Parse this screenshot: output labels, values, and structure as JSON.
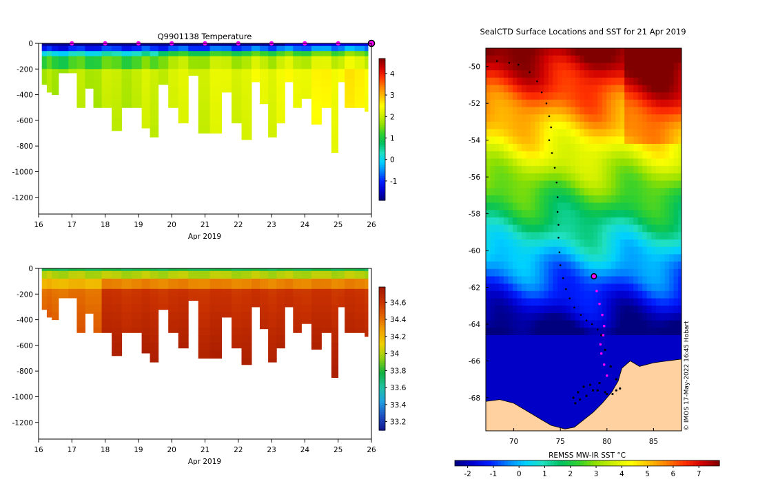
{
  "colors": {
    "jet": [
      "#00007f",
      "#0000d0",
      "#0020ff",
      "#0080ff",
      "#00d0ff",
      "#20e0c0",
      "#00c060",
      "#30d030",
      "#90e000",
      "#d0f000",
      "#ffff00",
      "#ffc000",
      "#ff8000",
      "#ff3000",
      "#d00000",
      "#800000"
    ],
    "salt": [
      "#101890",
      "#2050c0",
      "#20a0e0",
      "#20c0a0",
      "#10b040",
      "#90d010",
      "#f0d000",
      "#f0a000",
      "#e06000",
      "#c83000",
      "#a01800"
    ],
    "land": "#ffd0a0",
    "marker": "#ff00ff"
  },
  "chart_data": [
    {
      "id": "temperature",
      "type": "heatmap",
      "title": "Q9901138  Temperature",
      "xlabel": "Apr 2019",
      "x_ticks": [
        "16",
        "17",
        "18",
        "19",
        "20",
        "21",
        "22",
        "23",
        "24",
        "25",
        "26"
      ],
      "xlim": [
        16,
        26
      ],
      "y_ticks": [
        "0",
        "-200",
        "-400",
        "-600",
        "-800",
        "-1000",
        "-1200"
      ],
      "ylim": [
        -1330,
        0
      ],
      "colorbar_ticks": [
        "4",
        "3",
        "2",
        "1",
        "0",
        "-1"
      ],
      "colorbar_range": [
        -1.9,
        4.7
      ],
      "profile_days": [
        16.2,
        16.35,
        16.5,
        16.7,
        17.0,
        17.25,
        17.5,
        17.75,
        18.0,
        18.3,
        18.6,
        18.9,
        19.2,
        19.45,
        19.7,
        20.0,
        20.3,
        20.6,
        20.9,
        21.25,
        21.6,
        21.9,
        22.2,
        22.5,
        22.75,
        23.0,
        23.25,
        23.5,
        23.75,
        24.0,
        24.3,
        24.6,
        24.9,
        25.1,
        25.3,
        25.6,
        25.9
      ],
      "profile_max_depths": [
        320,
        380,
        400,
        230,
        230,
        500,
        350,
        500,
        500,
        680,
        500,
        500,
        660,
        730,
        320,
        500,
        620,
        250,
        700,
        700,
        380,
        620,
        750,
        300,
        470,
        730,
        620,
        300,
        500,
        430,
        630,
        500,
        850,
        300,
        500,
        500,
        530
      ],
      "surface_marker_days": [
        17,
        18,
        19,
        20,
        21,
        22,
        23,
        24,
        25
      ],
      "current_position_day": 26
    },
    {
      "id": "salinity",
      "type": "heatmap",
      "title": "",
      "xlabel": "Apr 2019",
      "x_ticks": [
        "16",
        "17",
        "18",
        "19",
        "20",
        "21",
        "22",
        "23",
        "24",
        "25",
        "26"
      ],
      "xlim": [
        16,
        26
      ],
      "y_ticks": [
        "0",
        "-200",
        "-400",
        "-600",
        "-800",
        "-1000",
        "-1200"
      ],
      "ylim": [
        -1330,
        0
      ],
      "colorbar_ticks": [
        "34.6",
        "34.4",
        "34.2",
        "34",
        "33.8",
        "33.6",
        "33.4",
        "33.2"
      ],
      "colorbar_range": [
        33.1,
        34.78
      ]
    },
    {
      "id": "map",
      "type": "heatmap",
      "title": "SealCTD Surface Locations and SST for 21 Apr 2019",
      "x_ticks": [
        "70",
        "75",
        "80",
        "85"
      ],
      "xlim": [
        67,
        88
      ],
      "y_ticks": [
        "-50",
        "-52",
        "-54",
        "-56",
        "-58",
        "-60",
        "-62",
        "-64",
        "-66",
        "-68"
      ],
      "ylim": [
        -69.8,
        -49
      ],
      "colorbar_label": "REMSS MW-IR SST °C",
      "colorbar_ticks": [
        "-2",
        "-1",
        "0",
        "1",
        "2",
        "3",
        "4",
        "5",
        "6",
        "7"
      ],
      "colorbar_range": [
        -2.5,
        7.8
      ],
      "track_lon": [
        68.2,
        69.5,
        70.5,
        71.7,
        72.5,
        73.0,
        73.5,
        73.8,
        74.0,
        73.8,
        74.1,
        74.4,
        74.6,
        74.7,
        74.7,
        74.8,
        74.8,
        74.9,
        75.0,
        75.3,
        75.6,
        76.0,
        76.5,
        77.2,
        77.8,
        78.4,
        79.0,
        79.4
      ],
      "track_lat": [
        -49.7,
        -49.8,
        -49.9,
        -50.3,
        -50.8,
        -51.4,
        -52.0,
        -52.7,
        -53.3,
        -54.0,
        -54.7,
        -55.5,
        -56.3,
        -57.1,
        -57.9,
        -58.6,
        -59.3,
        -60.1,
        -60.8,
        -61.5,
        -62.1,
        -62.6,
        -63.1,
        -63.5,
        -63.8,
        -64.0,
        -64.3,
        -64.6
      ],
      "recent_track_lon": [
        78.6,
        78.9,
        79.2,
        79.5,
        79.7,
        79.6,
        79.3,
        79.4,
        79.7,
        80.0
      ],
      "recent_track_lat": [
        -61.4,
        -62.2,
        -62.9,
        -63.5,
        -64.1,
        -64.6,
        -65.1,
        -65.6,
        -66.2,
        -66.8
      ],
      "coast_track_lon": [
        79.4,
        79.8,
        80.4,
        81.0,
        81.4,
        80.6,
        79.8,
        79.2,
        78.5,
        77.8,
        77.1,
        76.6,
        76.4,
        76.9,
        77.5,
        78.2,
        79.0,
        80.0,
        81.0
      ],
      "coast_track_lat": [
        -64.6,
        -65.4,
        -66.3,
        -67.0,
        -67.5,
        -67.8,
        -67.7,
        -67.2,
        -67.6,
        -67.9,
        -68.1,
        -68.3,
        -68.0,
        -67.7,
        -67.4,
        -67.3,
        -67.6,
        -67.8,
        -67.6
      ],
      "current_position": [
        78.6,
        -61.4
      ],
      "stamp": "© IMOS 17-May-2022 16:45 Hobart"
    }
  ]
}
